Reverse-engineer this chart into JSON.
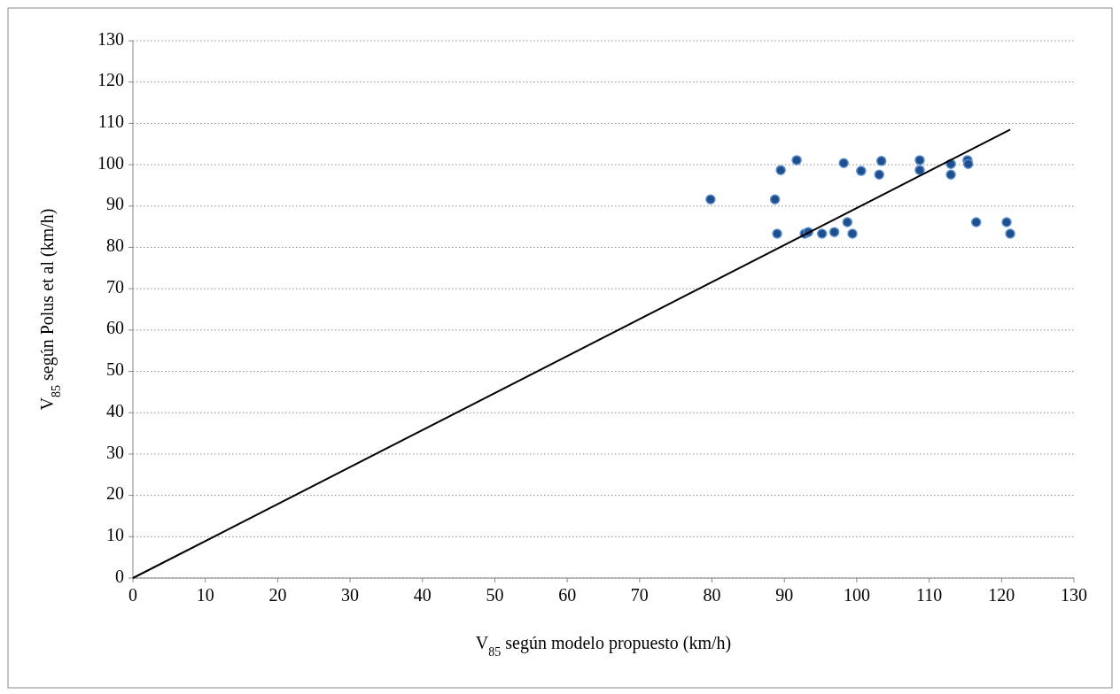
{
  "chart_data": {
    "type": "scatter",
    "xlabel": "V$_{85}$ según modelo propuesto (km/h)",
    "ylabel": "V$_{85}$ según Polus et al (km/h)",
    "xlim": [
      0,
      130
    ],
    "xticks": [
      0,
      10,
      20,
      30,
      40,
      50,
      60,
      70,
      80,
      90,
      100,
      110,
      120,
      130
    ],
    "ylim": [
      0,
      130
    ],
    "yticks": [
      0,
      10,
      20,
      30,
      40,
      50,
      60,
      70,
      80,
      90,
      100,
      110,
      120,
      130
    ],
    "grid": "y",
    "marker": "circle",
    "series": [
      {
        "color": "#1f4e8c",
        "x": [
          79.8,
          88.7,
          89.0,
          89.5,
          91.7,
          92.8,
          93.3,
          95.2,
          96.9,
          98.2,
          98.7,
          99.4,
          100.6,
          103.1,
          103.4,
          108.7,
          108.7,
          113.0,
          113.0,
          115.3,
          115.4,
          116.5,
          120.7,
          121.2
        ],
        "values": [
          91.6,
          91.6,
          83.3,
          98.7,
          101.1,
          83.3,
          83.7,
          83.3,
          83.7,
          100.4,
          86.1,
          83.3,
          98.5,
          97.6,
          100.9,
          101.1,
          98.7,
          100.2,
          97.6,
          101.1,
          100.2,
          86.1,
          86.1,
          83.3
        ]
      },
      {
        "type": "line",
        "color": "#000000",
        "x": [
          0,
          121.2
        ],
        "values": [
          0,
          108.5
        ],
        "marker": "none",
        "line_style": "solid"
      }
    ]
  }
}
